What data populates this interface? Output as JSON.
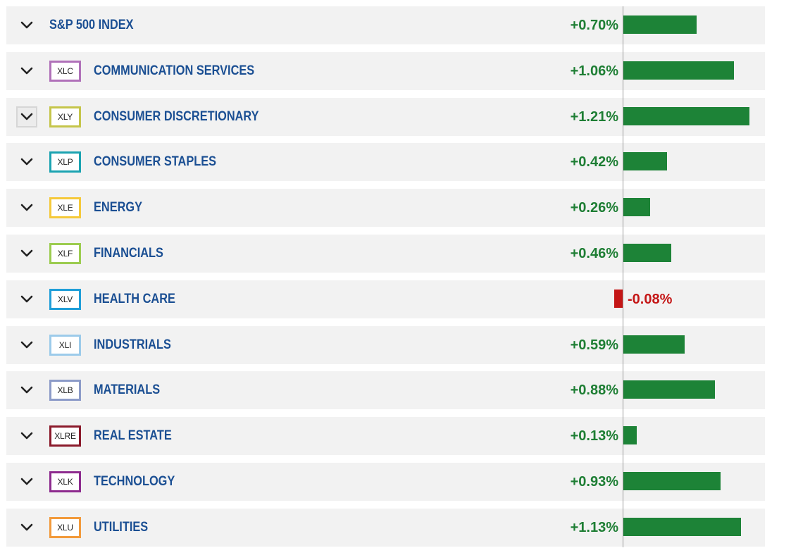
{
  "rows": [
    {
      "ticker": "",
      "name": "S&P 500 INDEX",
      "change_label": "+0.70%",
      "change": 0.7,
      "ticker_color": "",
      "is_index": true
    },
    {
      "ticker": "XLC",
      "name": "COMMUNICATION SERVICES",
      "change_label": "+1.06%",
      "change": 1.06,
      "ticker_color": "#b071b9"
    },
    {
      "ticker": "XLY",
      "name": "CONSUMER DISCRETIONARY",
      "change_label": "+1.21%",
      "change": 1.21,
      "ticker_color": "#c5c54a",
      "focused": true
    },
    {
      "ticker": "XLP",
      "name": "CONSUMER STAPLES",
      "change_label": "+0.42%",
      "change": 0.42,
      "ticker_color": "#1ba3b1"
    },
    {
      "ticker": "XLE",
      "name": "ENERGY",
      "change_label": "+0.26%",
      "change": 0.26,
      "ticker_color": "#f5c93a"
    },
    {
      "ticker": "XLF",
      "name": "FINANCIALS",
      "change_label": "+0.46%",
      "change": 0.46,
      "ticker_color": "#9ccc50"
    },
    {
      "ticker": "XLV",
      "name": "HEALTH CARE",
      "change_label": "-0.08%",
      "change": -0.08,
      "ticker_color": "#1f9ed8"
    },
    {
      "ticker": "XLI",
      "name": "INDUSTRIALS",
      "change_label": "+0.59%",
      "change": 0.59,
      "ticker_color": "#9ccbea"
    },
    {
      "ticker": "XLB",
      "name": "MATERIALS",
      "change_label": "+0.88%",
      "change": 0.88,
      "ticker_color": "#8c9bc8"
    },
    {
      "ticker": "XLRE",
      "name": "REAL ESTATE",
      "change_label": "+0.13%",
      "change": 0.13,
      "ticker_color": "#8b1a2b"
    },
    {
      "ticker": "XLK",
      "name": "TECHNOLOGY",
      "change_label": "+0.93%",
      "change": 0.93,
      "ticker_color": "#8d2b8e"
    },
    {
      "ticker": "XLU",
      "name": "UTILITIES",
      "change_label": "+1.13%",
      "change": 1.13,
      "ticker_color": "#f29a3b"
    }
  ],
  "colors": {
    "positive": "#1e7e34",
    "negative": "#c41616",
    "name_text": "#1b4f93",
    "row_bg": "#f2f2f2"
  },
  "icons": {
    "expand": "chevron-down-icon"
  }
}
